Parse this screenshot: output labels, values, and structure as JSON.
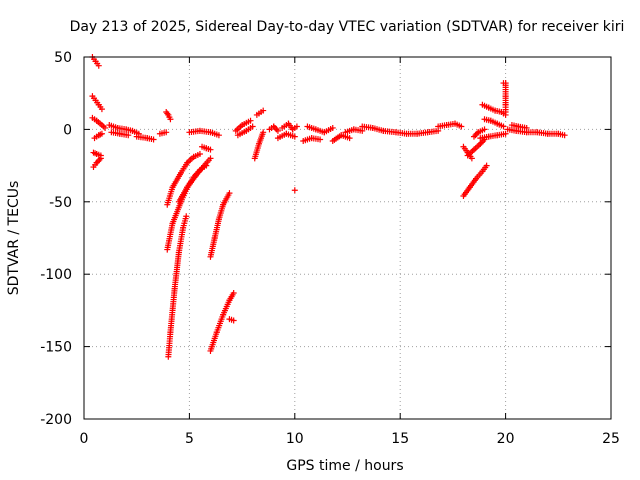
{
  "chart_data": {
    "type": "scatter",
    "title": "Day 213 of 2025, Sidereal Day-to-day VTEC variation (SDTVAR) for receiver kiri",
    "xlabel": "GPS time / hours",
    "ylabel": "SDTVAR / TECUs",
    "xlim": [
      0,
      25
    ],
    "ylim": [
      -200,
      50
    ],
    "xticks": [
      0,
      5,
      10,
      15,
      20,
      25
    ],
    "yticks": [
      -200,
      -150,
      -100,
      -50,
      0,
      50
    ],
    "xtick_labels": [
      "0",
      "5",
      "10",
      "15",
      "20",
      "25"
    ],
    "ytick_labels": [
      "-200",
      "-150",
      "-100",
      "-50",
      "0",
      "50"
    ],
    "grid": true,
    "marker": "+",
    "color": "#ff0000",
    "series": [
      {
        "name": "SDTVAR",
        "segments": [
          {
            "x": [
              0.4,
              0.55,
              0.7
            ],
            "y": [
              50,
              47,
              44
            ]
          },
          {
            "x": [
              0.4,
              0.55,
              0.7,
              0.85
            ],
            "y": [
              23,
              20,
              17,
              14
            ]
          },
          {
            "x": [
              0.4,
              0.6,
              0.85,
              1.0
            ],
            "y": [
              8,
              6,
              3,
              1
            ]
          },
          {
            "x": [
              0.5,
              0.7,
              0.85
            ],
            "y": [
              -6,
              -4,
              -3
            ]
          },
          {
            "x": [
              0.45,
              0.6,
              0.8
            ],
            "y": [
              -16,
              -17,
              -18
            ]
          },
          {
            "x": [
              0.45,
              0.6,
              0.8
            ],
            "y": [
              -26,
              -23,
              -20
            ]
          },
          {
            "x": [
              1.2,
              1.6,
              2.0,
              2.3,
              2.6
            ],
            "y": [
              3,
              1,
              0,
              -1,
              -3
            ]
          },
          {
            "x": [
              1.3,
              1.7,
              2.1
            ],
            "y": [
              -2,
              -3,
              -4
            ]
          },
          {
            "x": [
              2.5,
              3.0,
              3.3
            ],
            "y": [
              -5,
              -6,
              -7
            ]
          },
          {
            "x": [
              3.6,
              3.9
            ],
            "y": [
              -3,
              -2
            ]
          },
          {
            "x": [
              3.9,
              4.0,
              4.1
            ],
            "y": [
              12,
              10,
              7
            ]
          },
          {
            "x": [
              3.95,
              4.2,
              4.6,
              4.9,
              5.2,
              5.5
            ],
            "y": [
              -52,
              -40,
              -30,
              -23,
              -19,
              -17
            ]
          },
          {
            "x": [
              3.95,
              4.2,
              4.6,
              4.9,
              5.2,
              5.5,
              5.8
            ],
            "y": [
              -83,
              -65,
              -50,
              -40,
              -33,
              -28,
              -25
            ]
          },
          {
            "x": [
              4.0,
              4.1,
              4.3,
              4.5,
              4.7,
              4.85
            ],
            "y": [
              -157,
              -140,
              -110,
              -85,
              -68,
              -60
            ]
          },
          {
            "x": [
              4.5,
              4.9,
              5.3,
              5.7,
              6.0
            ],
            "y": [
              -50,
              -40,
              -32,
              -25,
              -20
            ]
          },
          {
            "x": [
              5.6,
              5.8,
              6.0
            ],
            "y": [
              -12,
              -13,
              -14
            ]
          },
          {
            "x": [
              5.0,
              5.5,
              6.0,
              6.4
            ],
            "y": [
              -2,
              -1,
              -2,
              -4
            ]
          },
          {
            "x": [
              6.0,
              6.2,
              6.4,
              6.6,
              6.9
            ],
            "y": [
              -88,
              -75,
              -62,
              -52,
              -44
            ]
          },
          {
            "x": [
              6.0,
              6.3,
              6.6,
              6.9,
              7.1
            ],
            "y": [
              -153,
              -140,
              -128,
              -118,
              -113
            ]
          },
          {
            "x": [
              6.9,
              7.1
            ],
            "y": [
              -131,
              -132
            ]
          },
          {
            "x": [
              7.2,
              7.5,
              7.9
            ],
            "y": [
              -1,
              3,
              6
            ]
          },
          {
            "x": [
              7.3,
              7.7,
              8.0
            ],
            "y": [
              -4,
              -1,
              2
            ]
          },
          {
            "x": [
              8.2,
              8.5
            ],
            "y": [
              10,
              13
            ]
          },
          {
            "x": [
              8.1,
              8.3,
              8.5
            ],
            "y": [
              -20,
              -10,
              -2
            ]
          },
          {
            "x": [
              8.8,
              9.0,
              9.2
            ],
            "y": [
              0,
              2,
              -1
            ]
          },
          {
            "x": [
              9.4,
              9.7,
              9.9,
              10.1
            ],
            "y": [
              1,
              4,
              0,
              2
            ]
          },
          {
            "x": [
              9.2,
              9.6,
              10.0
            ],
            "y": [
              -6,
              -3,
              -5
            ]
          },
          {
            "x": [
              10.0
            ],
            "y": [
              -42
            ]
          },
          {
            "x": [
              10.4,
              10.8,
              11.2
            ],
            "y": [
              -8,
              -6,
              -7
            ]
          },
          {
            "x": [
              10.6,
              11.0,
              11.4,
              11.8
            ],
            "y": [
              2,
              0,
              -2,
              1
            ]
          },
          {
            "x": [
              11.8,
              12.2,
              12.6
            ],
            "y": [
              -8,
              -4,
              -6
            ]
          },
          {
            "x": [
              12.4,
              12.8,
              13.2
            ],
            "y": [
              -2,
              0,
              -1
            ]
          },
          {
            "x": [
              13.2,
              13.7,
              14.2,
              14.8,
              15.3,
              15.8,
              16.3,
              16.8
            ],
            "y": [
              2,
              1,
              -1,
              -2,
              -3,
              -3,
              -2,
              -1
            ]
          },
          {
            "x": [
              16.8,
              17.2,
              17.6,
              17.9
            ],
            "y": [
              2,
              3,
              4,
              2
            ]
          },
          {
            "x": [
              18.0,
              18.3,
              18.6,
              18.9,
              19.1
            ],
            "y": [
              -46,
              -40,
              -34,
              -29,
              -25
            ]
          },
          {
            "x": [
              18.0,
              18.2,
              18.4
            ],
            "y": [
              -12,
              -16,
              -20
            ]
          },
          {
            "x": [
              18.2,
              18.5,
              18.8,
              19.0
            ],
            "y": [
              -18,
              -14,
              -10,
              -7
            ]
          },
          {
            "x": [
              18.5,
              18.7,
              19.0
            ],
            "y": [
              -5,
              -2,
              0
            ]
          },
          {
            "x": [
              18.8,
              19.2,
              19.6,
              20.0
            ],
            "y": [
              -6,
              -5,
              -4,
              -3
            ]
          },
          {
            "x": [
              18.9,
              19.2,
              19.5,
              19.8,
              20.0
            ],
            "y": [
              17,
              15,
              13,
              12,
              10
            ]
          },
          {
            "x": [
              19.0,
              19.3,
              19.6,
              19.9
            ],
            "y": [
              7,
              6,
              4,
              2
            ]
          },
          {
            "x": [
              19.9,
              20.0,
              20.0,
              20.0,
              20.0
            ],
            "y": [
              32,
              32,
              23,
              17,
              12
            ]
          },
          {
            "x": [
              20.1,
              20.5,
              21.0,
              21.5,
              22.0,
              22.5,
              22.8
            ],
            "y": [
              0,
              -1,
              -2,
              -2,
              -3,
              -3,
              -4
            ]
          },
          {
            "x": [
              20.3,
              20.6,
              21.0
            ],
            "y": [
              3,
              2,
              1
            ]
          }
        ]
      }
    ]
  }
}
